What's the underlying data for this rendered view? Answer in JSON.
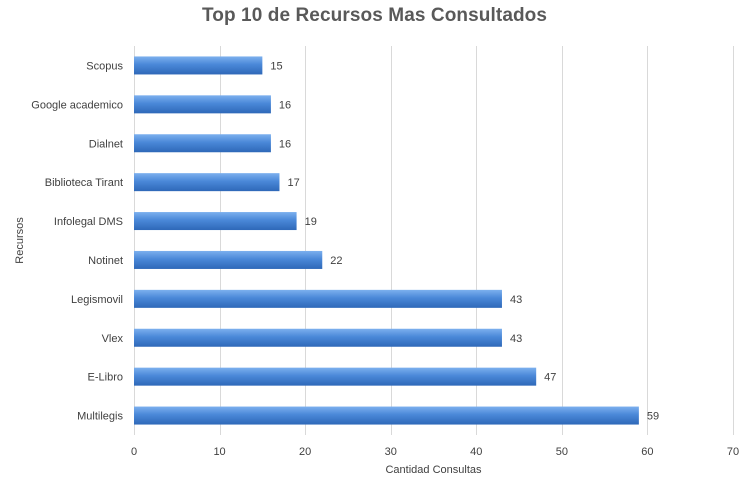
{
  "chart_data": {
    "type": "bar",
    "orientation": "horizontal",
    "title": "Top 10 de Recursos Mas Consultados",
    "xlabel": "Cantidad Consultas",
    "ylabel": "Recursos",
    "categories": [
      "Scopus",
      "Google academico",
      "Dialnet",
      "Biblioteca Tirant",
      "Infolegal DMS",
      "Notinet",
      "Legismovil",
      "Vlex",
      "E-Libro",
      "Multilegis"
    ],
    "values": [
      15,
      16,
      16,
      17,
      19,
      22,
      43,
      43,
      47,
      59
    ],
    "xlim": [
      0,
      70
    ],
    "xticks": [
      0,
      10,
      20,
      30,
      40,
      50,
      60,
      70
    ],
    "grid": "vertical",
    "legend": "none",
    "bar_color": "#4a88d8",
    "bar_color_light": "#7cb0ee",
    "bar_color_dark": "#2e68b8",
    "grid_color": "#d9d9d9"
  }
}
